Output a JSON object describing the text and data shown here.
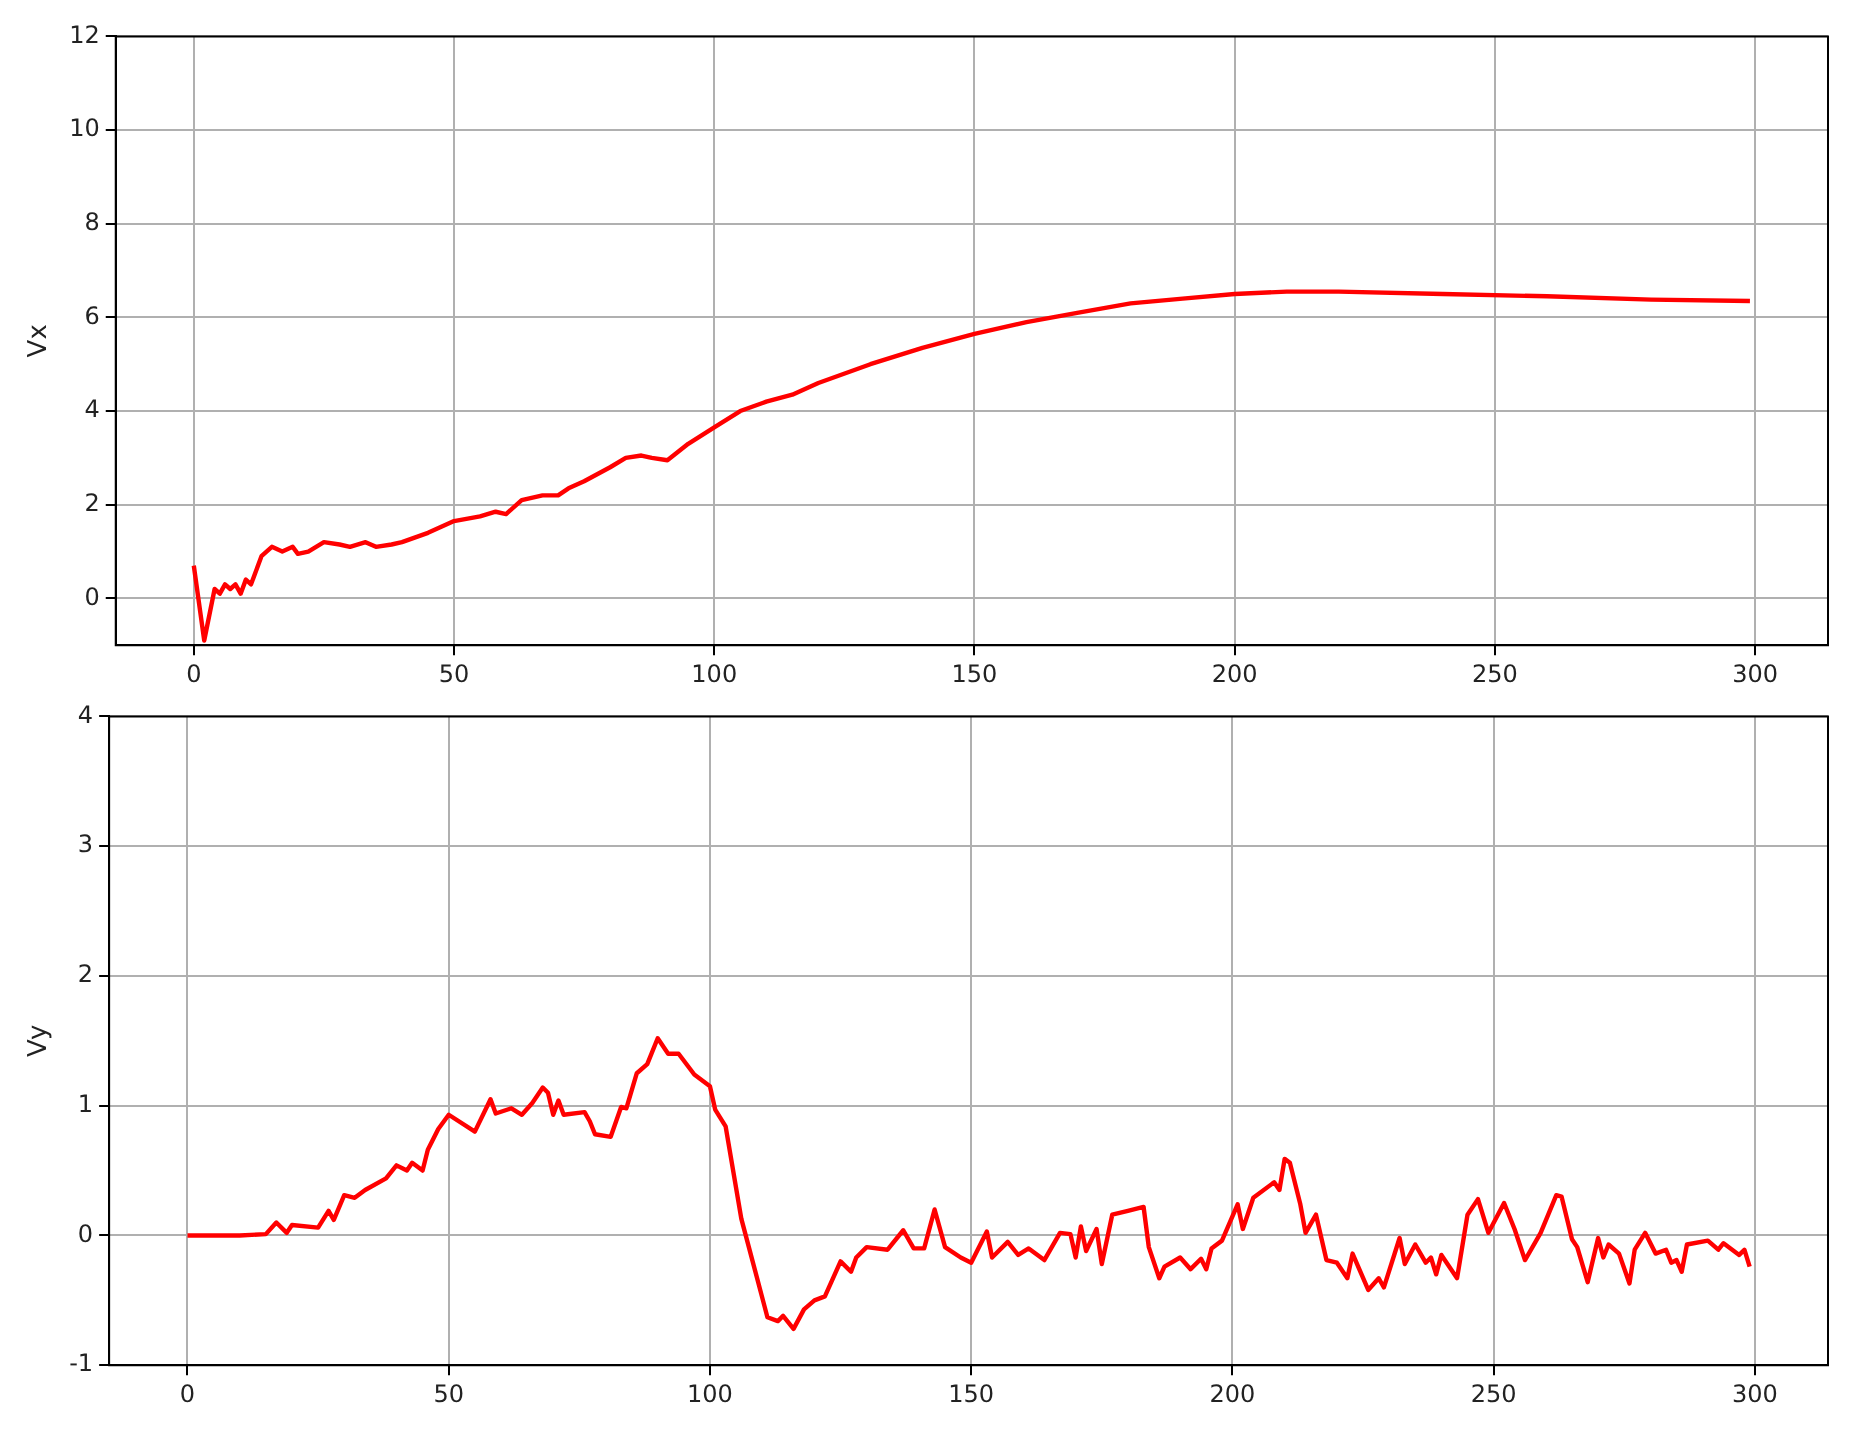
{
  "chart_data": [
    {
      "type": "line",
      "ylabel": "Vx",
      "color": "#ff0000",
      "grid": true,
      "xlim": [
        -15,
        314
      ],
      "ylim": [
        -1,
        12
      ],
      "xticks": [
        0,
        50,
        100,
        150,
        200,
        250,
        300
      ],
      "yticks": [
        0,
        2,
        4,
        6,
        8,
        10,
        12
      ],
      "x": [
        0,
        2,
        4,
        5,
        6,
        7,
        8,
        9,
        10,
        11,
        13,
        15,
        17,
        19,
        20,
        22,
        25,
        28,
        30,
        33,
        35,
        38,
        40,
        45,
        50,
        55,
        58,
        60,
        63,
        67,
        70,
        72,
        75,
        80,
        83,
        86,
        88,
        91,
        95,
        100,
        105,
        110,
        115,
        120,
        130,
        140,
        150,
        160,
        170,
        180,
        190,
        200,
        210,
        220,
        240,
        260,
        280,
        299
      ],
      "values": [
        0.7,
        -0.9,
        0.2,
        0.1,
        0.3,
        0.2,
        0.3,
        0.1,
        0.4,
        0.3,
        0.9,
        1.1,
        1.0,
        1.1,
        0.95,
        1.0,
        1.2,
        1.15,
        1.1,
        1.2,
        1.1,
        1.15,
        1.2,
        1.4,
        1.65,
        1.75,
        1.85,
        1.8,
        2.1,
        2.2,
        2.2,
        2.35,
        2.5,
        2.8,
        3.0,
        3.05,
        3.0,
        2.95,
        3.3,
        3.65,
        4.0,
        4.2,
        4.35,
        4.6,
        5.0,
        5.35,
        5.65,
        5.9,
        6.1,
        6.3,
        6.4,
        6.5,
        6.55,
        6.55,
        6.5,
        6.45,
        6.38,
        6.35
      ]
    },
    {
      "type": "line",
      "ylabel": "Vy",
      "color": "#ff0000",
      "grid": true,
      "xlim": [
        -15,
        314
      ],
      "ylim": [
        -1,
        4
      ],
      "xticks": [
        0,
        50,
        100,
        150,
        200,
        250,
        300
      ],
      "yticks": [
        -1,
        0,
        1,
        2,
        3,
        4
      ],
      "x": [
        0,
        10,
        15,
        17,
        19,
        20,
        25,
        27,
        28,
        30,
        32,
        34,
        38,
        40,
        42,
        43,
        45,
        46,
        48,
        50,
        55,
        58,
        59,
        62,
        64,
        66,
        68,
        69,
        70,
        71,
        72,
        76,
        77,
        78,
        81,
        83,
        84,
        86,
        88,
        90,
        92,
        94,
        97,
        100,
        101,
        103,
        106,
        111,
        113,
        114,
        116,
        118,
        120,
        122,
        125,
        127,
        128,
        130,
        134,
        137,
        139,
        141,
        143,
        145,
        148,
        150,
        153,
        154,
        157,
        159,
        161,
        164,
        167,
        169,
        170,
        171,
        172,
        174,
        175,
        177,
        180,
        183,
        184,
        186,
        187,
        190,
        192,
        194,
        195,
        196,
        198,
        201,
        202,
        204,
        208,
        209,
        210,
        211,
        213,
        214,
        216,
        218,
        220,
        222,
        223,
        226,
        228,
        229,
        232,
        233,
        235,
        237,
        238,
        239,
        240,
        243,
        245,
        247,
        249,
        252,
        254,
        256,
        259,
        262,
        263,
        265,
        266,
        268,
        270,
        271,
        272,
        274,
        276,
        277,
        279,
        281,
        283,
        284,
        285,
        286,
        287,
        291,
        293,
        294,
        297,
        298,
        299
      ],
      "values": [
        0,
        0,
        0.01,
        0.1,
        0.02,
        0.08,
        0.06,
        0.19,
        0.12,
        0.31,
        0.29,
        0.35,
        0.44,
        0.54,
        0.5,
        0.56,
        0.5,
        0.66,
        0.82,
        0.93,
        0.8,
        1.05,
        0.94,
        0.98,
        0.93,
        1.02,
        1.14,
        1.1,
        0.93,
        1.04,
        0.93,
        0.95,
        0.88,
        0.78,
        0.76,
        0.99,
        0.98,
        1.25,
        1.32,
        1.52,
        1.4,
        1.4,
        1.24,
        1.15,
        0.97,
        0.84,
        0.13,
        -0.63,
        -0.66,
        -0.62,
        -0.72,
        -0.57,
        -0.5,
        -0.47,
        -0.2,
        -0.28,
        -0.17,
        -0.09,
        -0.11,
        0.04,
        -0.1,
        -0.1,
        0.2,
        -0.09,
        -0.17,
        -0.21,
        0.03,
        -0.17,
        -0.05,
        -0.15,
        -0.1,
        -0.19,
        0.02,
        0.01,
        -0.17,
        0.07,
        -0.12,
        0.05,
        -0.22,
        0.16,
        0.19,
        0.22,
        -0.09,
        -0.33,
        -0.24,
        -0.17,
        -0.26,
        -0.18,
        -0.26,
        -0.1,
        -0.04,
        0.24,
        0.05,
        0.29,
        0.41,
        0.35,
        0.59,
        0.56,
        0.24,
        0.02,
        0.16,
        -0.19,
        -0.21,
        -0.33,
        -0.14,
        -0.42,
        -0.33,
        -0.4,
        -0.02,
        -0.22,
        -0.07,
        -0.21,
        -0.17,
        -0.3,
        -0.15,
        -0.33,
        0.16,
        0.28,
        0.02,
        0.25,
        0.05,
        -0.19,
        0.02,
        0.31,
        0.3,
        -0.03,
        -0.09,
        -0.36,
        -0.02,
        -0.17,
        -0.07,
        -0.14,
        -0.37,
        -0.11,
        0.02,
        -0.14,
        -0.11,
        -0.21,
        -0.19,
        -0.28,
        -0.07,
        -0.04,
        -0.11,
        -0.06,
        -0.15,
        -0.11,
        -0.24
      ]
    }
  ]
}
